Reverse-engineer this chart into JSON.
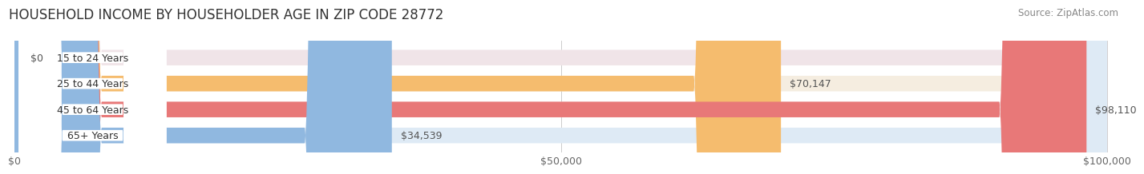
{
  "title": "HOUSEHOLD INCOME BY HOUSEHOLDER AGE IN ZIP CODE 28772",
  "source": "Source: ZipAtlas.com",
  "categories": [
    "15 to 24 Years",
    "25 to 44 Years",
    "45 to 64 Years",
    "65+ Years"
  ],
  "values": [
    0,
    70147,
    98110,
    34539
  ],
  "bar_colors": [
    "#f4a0b5",
    "#f5bc6e",
    "#e87878",
    "#90b8e0"
  ],
  "bg_colors": [
    "#f0e4e8",
    "#f5ede0",
    "#f2e0e0",
    "#deeaf5"
  ],
  "max_value": 100000,
  "x_ticks": [
    0,
    50000,
    100000
  ],
  "x_tick_labels": [
    "$0",
    "$50,000",
    "$100,000"
  ],
  "title_fontsize": 12,
  "source_fontsize": 8.5,
  "bar_height": 0.6,
  "figure_width": 14.06,
  "figure_height": 2.33,
  "background_color": "#ffffff"
}
